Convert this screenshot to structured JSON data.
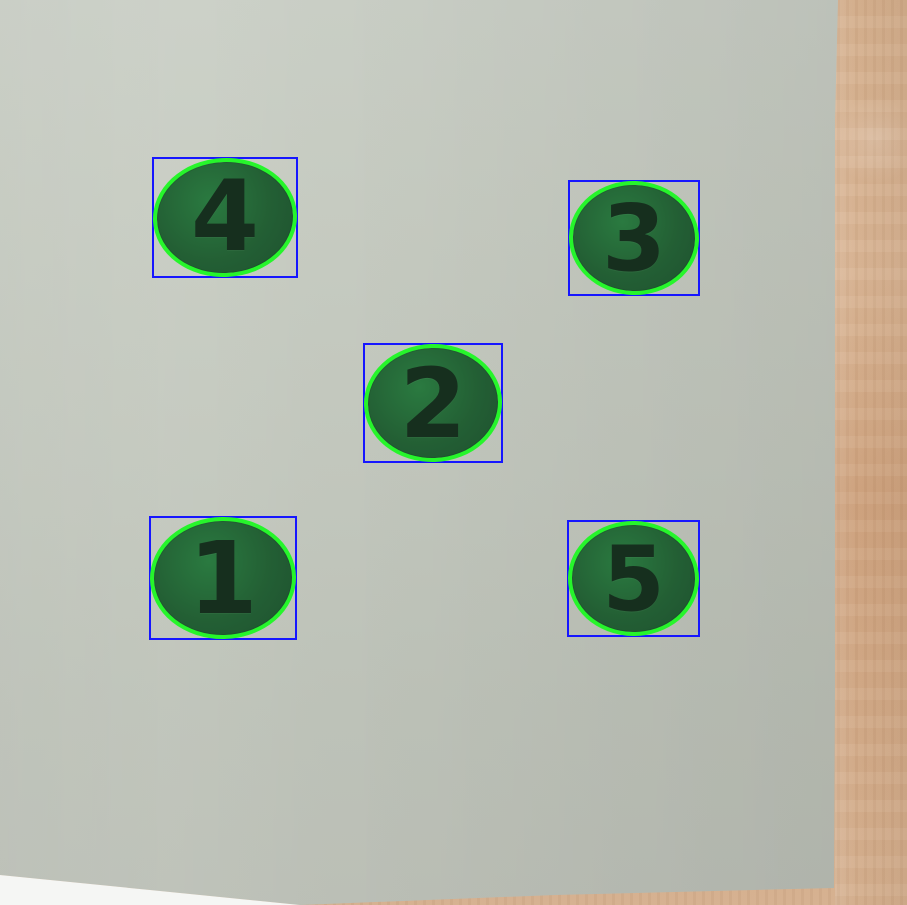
{
  "markers": [
    {
      "label": "4"
    },
    {
      "label": "3"
    },
    {
      "label": "2"
    },
    {
      "label": "1"
    },
    {
      "label": "5"
    }
  ],
  "colors": {
    "paper": "#c8cdc3",
    "wood": "#d5b08e",
    "marker_fill": "#235f34",
    "marker_outline": "#26f52b",
    "box_outline": "#1616ff",
    "digit": "#162f1e"
  }
}
